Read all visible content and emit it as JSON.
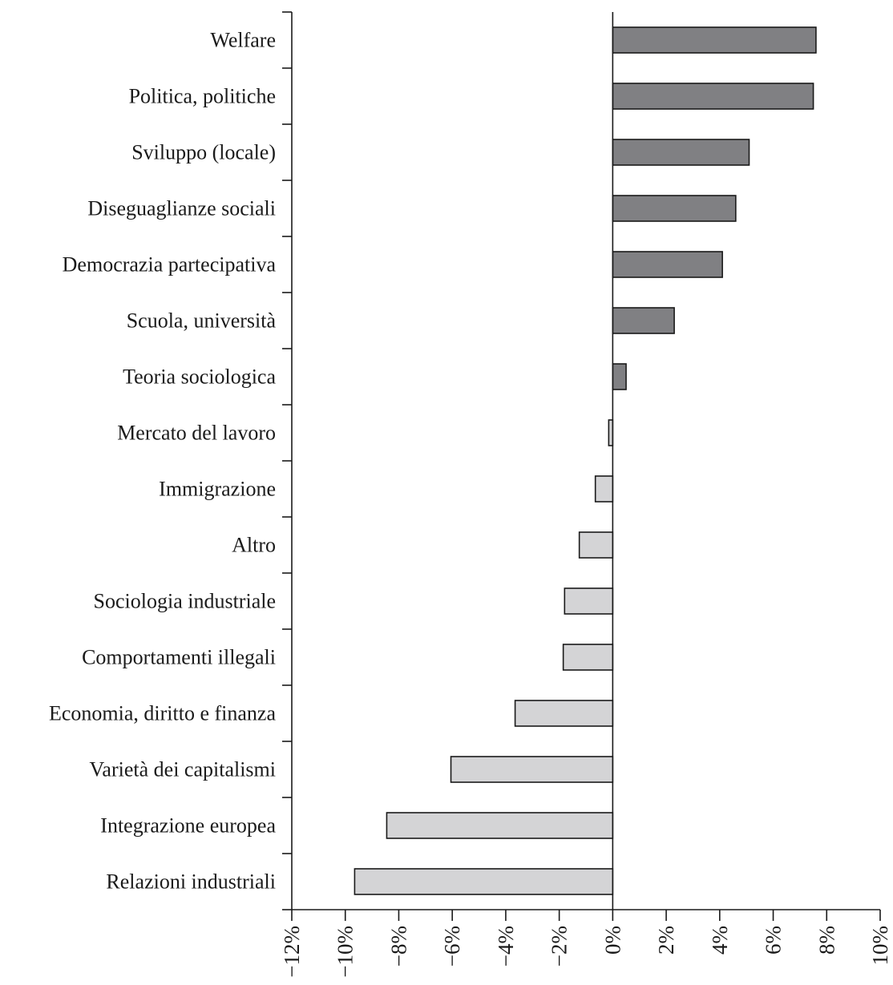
{
  "chart_data": {
    "type": "bar",
    "orientation": "horizontal",
    "categories": [
      "Welfare",
      "Politica, politiche",
      "Sviluppo (locale)",
      "Diseguaglianze sociali",
      "Democrazia partecipativa",
      "Scuola, università",
      "Teoria sociologica",
      "Mercato del lavoro",
      "Immigrazione",
      "Altro",
      "Sociologia industriale",
      "Comportamenti illegali",
      "Economia, diritto e finanza",
      "Varietà dei capitalismi",
      "Integrazione europea",
      "Relazioni industriali"
    ],
    "values": [
      7.6,
      7.5,
      5.1,
      4.6,
      4.1,
      2.3,
      0.5,
      -0.15,
      -0.65,
      -1.25,
      -1.8,
      -1.85,
      -3.65,
      -6.05,
      -8.45,
      -9.65
    ],
    "xlim": [
      -12,
      10
    ],
    "xticks": [
      -12,
      -10,
      -8,
      -6,
      -4,
      -2,
      0,
      2,
      4,
      6,
      8,
      10
    ],
    "xtick_labels": [
      "−12%",
      "−10%",
      "−8%",
      "−6%",
      "−4%",
      "−2%",
      "0%",
      "2%",
      "4%",
      "6%",
      "8%",
      "10%"
    ],
    "title": "",
    "xlabel": "",
    "ylabel": "",
    "grid": false,
    "colors": {
      "positive": "#808083",
      "negative": "#d4d4d6",
      "axis": "#1a1a1a"
    }
  }
}
